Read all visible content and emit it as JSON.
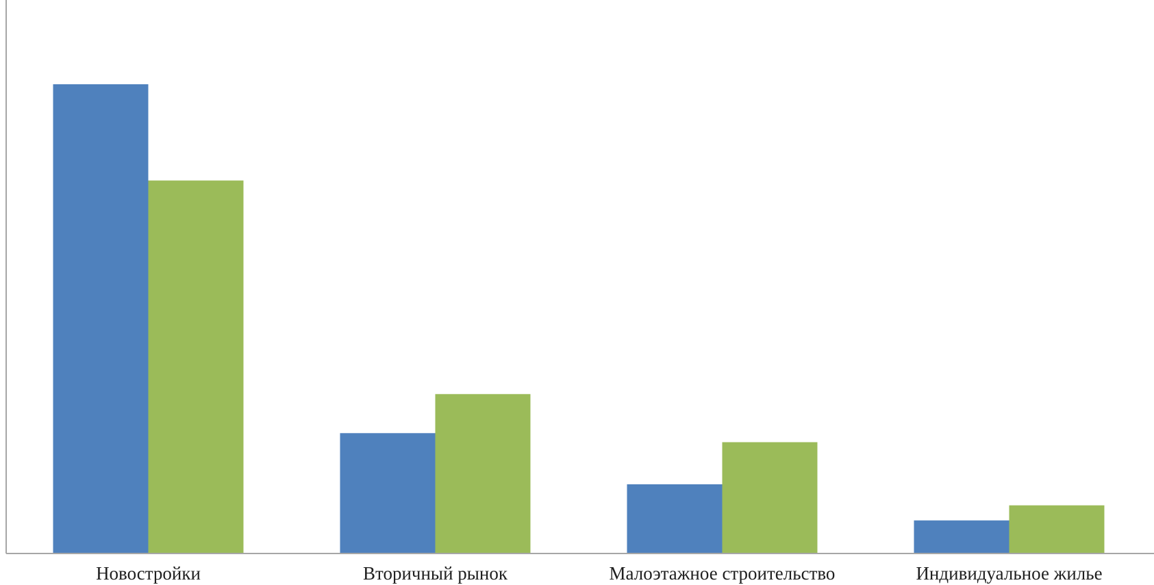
{
  "chart_data": {
    "type": "bar",
    "categories": [
      "Новостройки",
      "Вторичный рынок",
      "Малоэтажное строительство",
      "Индивидуальное жилье"
    ],
    "series": [
      {
        "values": [
          78,
          20,
          11.5,
          5.5
        ],
        "color": "#4F81BD"
      },
      {
        "values": [
          62,
          26.5,
          18.5,
          8
        ],
        "color": "#9BBB59"
      }
    ],
    "ylim": [
      0,
      92
    ],
    "grid": false,
    "legend": "none",
    "title": "",
    "xlabel": "",
    "ylabel": ""
  }
}
